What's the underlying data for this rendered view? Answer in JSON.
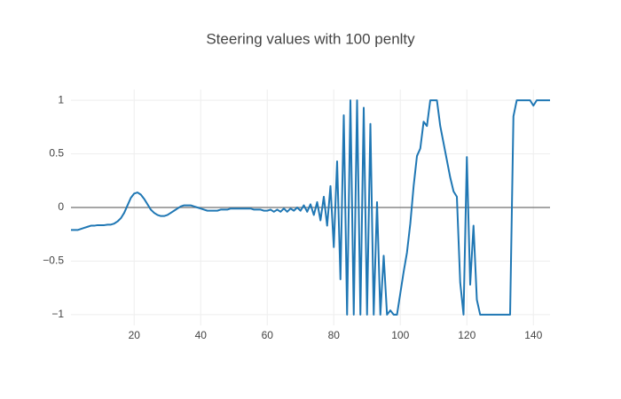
{
  "chart_data": {
    "type": "line",
    "title": "Steering values with 100 penlty",
    "x": [
      1,
      2,
      3,
      4,
      5,
      6,
      7,
      8,
      9,
      10,
      11,
      12,
      13,
      14,
      15,
      16,
      17,
      18,
      19,
      20,
      21,
      22,
      23,
      24,
      25,
      26,
      27,
      28,
      29,
      30,
      31,
      32,
      33,
      34,
      35,
      36,
      37,
      38,
      39,
      40,
      41,
      42,
      43,
      44,
      45,
      46,
      47,
      48,
      49,
      50,
      51,
      52,
      53,
      54,
      55,
      56,
      57,
      58,
      59,
      60,
      61,
      62,
      63,
      64,
      65,
      66,
      67,
      68,
      69,
      70,
      71,
      72,
      73,
      74,
      75,
      76,
      77,
      78,
      79,
      80,
      81,
      82,
      83,
      84,
      85,
      86,
      87,
      88,
      89,
      90,
      91,
      92,
      93,
      94,
      95,
      96,
      97,
      98,
      99,
      100,
      101,
      102,
      103,
      104,
      105,
      106,
      107,
      108,
      109,
      110,
      111,
      112,
      113,
      114,
      115,
      116,
      117,
      118,
      119,
      120,
      121,
      122,
      123,
      124,
      125,
      126,
      127,
      128,
      129,
      130,
      131,
      132,
      133,
      134,
      135,
      136,
      137,
      138,
      139,
      140,
      141,
      142,
      143,
      144,
      145
    ],
    "series": [
      {
        "color": "#1f77b4",
        "values": [
          -0.21,
          -0.21,
          -0.21,
          -0.2,
          -0.19,
          -0.18,
          -0.17,
          -0.17,
          -0.165,
          -0.165,
          -0.165,
          -0.16,
          -0.16,
          -0.15,
          -0.13,
          -0.1,
          -0.05,
          0.02,
          0.09,
          0.13,
          0.14,
          0.12,
          0.08,
          0.03,
          -0.02,
          -0.05,
          -0.07,
          -0.08,
          -0.08,
          -0.07,
          -0.05,
          -0.03,
          -0.01,
          0.01,
          0.02,
          0.02,
          0.02,
          0.01,
          0,
          -0.01,
          -0.02,
          -0.03,
          -0.03,
          -0.03,
          -0.03,
          -0.02,
          -0.02,
          -0.02,
          -0.01,
          -0.01,
          -0.01,
          -0.01,
          -0.01,
          -0.01,
          -0.01,
          -0.02,
          -0.02,
          -0.02,
          -0.03,
          -0.03,
          -0.02,
          -0.04,
          -0.02,
          -0.04,
          -0.01,
          -0.04,
          -0.01,
          -0.03,
          0,
          -0.03,
          0.02,
          -0.04,
          0.03,
          -0.07,
          0.05,
          -0.12,
          0.1,
          -0.17,
          0.2,
          -0.37,
          0.43,
          -0.67,
          0.86,
          -1,
          1,
          -1,
          1,
          -1,
          0.93,
          -1,
          0.78,
          -1,
          0.05,
          -1,
          -0.45,
          -1,
          -0.96,
          -1,
          -1,
          -0.8,
          -0.6,
          -0.42,
          -0.15,
          0.2,
          0.48,
          0.55,
          0.8,
          0.76,
          1,
          1,
          1,
          0.76,
          0.6,
          0.44,
          0.28,
          0.15,
          0.1,
          -0.7,
          -1,
          0.47,
          -0.72,
          -0.17,
          -0.86,
          -1,
          -1,
          -1,
          -1,
          -1,
          -1,
          -1,
          -1,
          -1,
          -1,
          0.85,
          1,
          1,
          1,
          1,
          1,
          0.95,
          1,
          1,
          1,
          1,
          1
        ]
      }
    ],
    "xlim": [
      1,
      145
    ],
    "xticks": [
      20,
      40,
      60,
      80,
      100,
      120,
      140
    ],
    "ylim": [
      -1.1,
      1.1
    ],
    "yticks": [
      {
        "value": -1,
        "label": "−1"
      },
      {
        "value": -0.5,
        "label": "−0.5"
      },
      0,
      0.5,
      1
    ],
    "grid": true
  }
}
